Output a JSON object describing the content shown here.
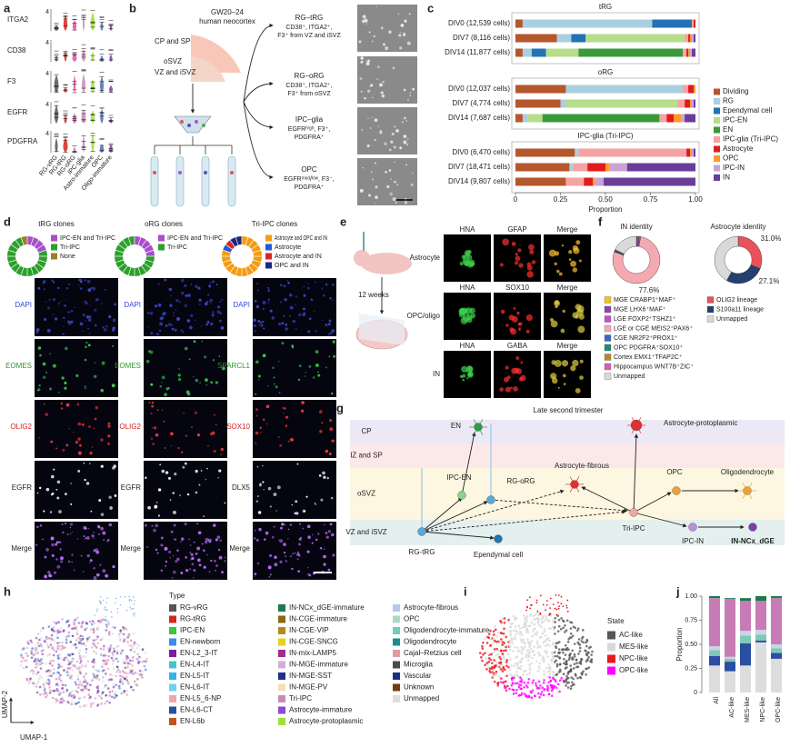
{
  "panel_a": {
    "label": "a",
    "genes": [
      "ITGA2",
      "CD38",
      "F3",
      "EGFR",
      "PDGFRA"
    ],
    "axis_max": 4,
    "categories": [
      "RG-vRG",
      "RG-tRG",
      "RG-oRG",
      "IPC-glia",
      "Astro-immature",
      "OPC",
      "Oligo-immature"
    ],
    "colors": [
      "#555555",
      "#d7261e",
      "#e84aa0",
      "#c68ab7",
      "#9ee03a",
      "#4c6fb0",
      "#7a3fb0"
    ]
  },
  "panel_b": {
    "label": "b",
    "source": [
      "GW20–24",
      "human neocortex"
    ],
    "regions": [
      "CP and SP",
      "oSVZ",
      "VZ and iSVZ"
    ],
    "branches": [
      {
        "title": "RG–tRG",
        "lines": [
          "CD38⁺, ITGA2⁺,",
          "F3⁺ from VZ and iSVZ"
        ]
      },
      {
        "title": "RG–oRG",
        "lines": [
          "CD38⁺, ITGA2⁺,",
          "F3⁺ from oSVZ"
        ]
      },
      {
        "title": "IPC–glia",
        "lines": [
          "EGFRʰⁱᵍʰ, F3⁺,",
          "PDGFRA⁺"
        ]
      },
      {
        "title": "OPC",
        "lines": [
          "EGFRᵐᵉᵈ/ˡᵒʷ, F3⁻,",
          "PDGFRA⁺"
        ]
      }
    ]
  },
  "panel_c": {
    "label": "c",
    "type": "stacked_barh",
    "groups": [
      {
        "title": "tRG",
        "rows": [
          "DIV0 (12,539 cells)",
          "DIV7 (8,116 cells)",
          "DIV14 (11,877 cells)"
        ]
      },
      {
        "title": "oRG",
        "rows": [
          "DIV0 (12,037 cells)",
          "DIV7 (4,774 cells)",
          "DIV14 (7,687 cells)"
        ]
      },
      {
        "title": "IPC-glia (Tri-IPC)",
        "rows": [
          "DIV0 (6,470 cells)",
          "DIV7 (18,471 cells)",
          "DIV14 (9,807 cells)"
        ]
      }
    ],
    "series": [
      {
        "name": "Dividing",
        "color": "#b5562b",
        "values": [
          0.04,
          0.23,
          0.04,
          0.28,
          0.25,
          0.04,
          0.33,
          0.3,
          0.28
        ]
      },
      {
        "name": "RG",
        "color": "#a9cfe0",
        "values": [
          0.72,
          0.08,
          0.05,
          0.65,
          0.03,
          0.03,
          0.02,
          0.02,
          0
        ]
      },
      {
        "name": "Ependymal cell",
        "color": "#2272b4",
        "values": [
          0.22,
          0.08,
          0.08,
          0,
          0,
          0,
          0,
          0,
          0
        ]
      },
      {
        "name": "IPC-EN",
        "color": "#b5dd8a",
        "values": [
          0,
          0.55,
          0.18,
          0,
          0.62,
          0.08,
          0,
          0,
          0
        ]
      },
      {
        "name": "EN",
        "color": "#3a9a3a",
        "values": [
          0,
          0,
          0.58,
          0,
          0,
          0.65,
          0,
          0,
          0
        ]
      },
      {
        "name": "IPC-glia (Tri-IPC)",
        "color": "#f4a3a3",
        "values": [
          0.01,
          0.02,
          0.02,
          0.03,
          0.04,
          0.04,
          0.6,
          0.08,
          0.1
        ]
      },
      {
        "name": "Astrocyte",
        "color": "#e31a1c",
        "values": [
          0.01,
          0.01,
          0.01,
          0.03,
          0.03,
          0.04,
          0.02,
          0.1,
          0.05
        ]
      },
      {
        "name": "OPC",
        "color": "#fb9a29",
        "values": [
          0,
          0.01,
          0.01,
          0.01,
          0.01,
          0.04,
          0.01,
          0.02,
          0.01
        ]
      },
      {
        "name": "IPC-IN",
        "color": "#c9a3d6",
        "values": [
          0,
          0.01,
          0.01,
          0,
          0.01,
          0.02,
          0.01,
          0.1,
          0.05
        ]
      },
      {
        "name": "IN",
        "color": "#6a3d9a",
        "values": [
          0,
          0.01,
          0.02,
          0,
          0.01,
          0.06,
          0.01,
          0.38,
          0.51
        ]
      }
    ],
    "xlim": [
      0,
      1
    ],
    "xticks": [
      0,
      0.25,
      {
        "value": 0.5,
        "label": "0.50"
      },
      0.75,
      {
        "value": 1,
        "label": "1.00"
      }
    ],
    "x_label": "Proportion"
  },
  "panel_d": {
    "label": "d",
    "donuts": [
      {
        "title": "tRG clones",
        "segments": [
          {
            "name": "IPC-EN and Tri-IPC",
            "color": "#a64fc9",
            "value": 4
          },
          {
            "name": "Tri-IPC",
            "color": "#2ca02c",
            "value": 15
          },
          {
            "name": "None",
            "color": "#a07a2c",
            "value": 1
          }
        ]
      },
      {
        "title": "oRG clones",
        "segments": [
          {
            "name": "IPC-EN and Tri-IPC",
            "color": "#a64fc9",
            "value": 5
          },
          {
            "name": "Tri-IPC",
            "color": "#2ca02c",
            "value": 15
          }
        ]
      },
      {
        "title": "Tri-IPC clones",
        "segments": [
          {
            "name": "Astrocyte and OPC and IN",
            "color": "#f39c12",
            "value": 16
          },
          {
            "name": "Astrocyte",
            "color": "#2458d6",
            "value": 1
          },
          {
            "name": "Astrocyte and IN",
            "color": "#d62728",
            "value": 1
          },
          {
            "name": "OPC and IN",
            "color": "#1a2a80",
            "value": 2
          }
        ]
      }
    ],
    "stains": [
      [
        "DAPI",
        "EOMES",
        "OLIG2",
        "EGFR",
        "Merge"
      ],
      [
        "DAPI",
        "EOMES",
        "OLIG2",
        "EGFR",
        "Merge"
      ],
      [
        "DAPI",
        "SPARCL1",
        "SOX10",
        "DLX5",
        "Merge"
      ]
    ]
  },
  "panel_e": {
    "label": "e",
    "duration": "12 weeks",
    "rows": [
      {
        "name": "Astrocyte",
        "stains": [
          "HNA",
          "GFAP",
          "Merge"
        ]
      },
      {
        "name": "OPC/oligo",
        "stains": [
          "HNA",
          "SOX10",
          "Merge"
        ]
      },
      {
        "name": "IN",
        "stains": [
          "HNA",
          "GABA",
          "Merge"
        ]
      }
    ]
  },
  "panel_f": {
    "label": "f",
    "type": "donut",
    "in_identity": {
      "title": "IN identity",
      "segments": [
        {
          "name": "MGE CRABP1⁺MAF⁺",
          "color": "#f0c419",
          "value": 0.5
        },
        {
          "name": "MGE LHX6⁺MAF⁺",
          "color": "#8e44ad",
          "value": 1.5
        },
        {
          "name": "LGE FOXP2⁺TSHZ1⁺",
          "color": "#c052c8",
          "value": 1
        },
        {
          "name": "LGE or CGE MEIS2⁺PAX6⁺",
          "color": "#f4a9b1",
          "value": 77.6,
          "value_label": "77.6%"
        },
        {
          "name": "CGE NR2F2⁺PROX1⁺",
          "color": "#3b68c2",
          "value": 0.5
        },
        {
          "name": "OPC PDGFRA⁺SOX10⁺",
          "color": "#1f8a70",
          "value": 0.5
        },
        {
          "name": "Cortex EMX1⁺TFAP2C⁺",
          "color": "#b58a2c",
          "value": 0.3
        },
        {
          "name": "Hippocampus WNT7B⁺ZIC⁺",
          "color": "#d35fb7",
          "value": 0.3
        },
        {
          "name": "Unmapped",
          "color": "#d9d9d9",
          "value": 17.8
        }
      ]
    },
    "astro_identity": {
      "title": "Astrocyte identity",
      "segments": [
        {
          "name": "OLIG2 lineage",
          "color": "#e8525a",
          "value": 31.0,
          "value_label": "31.0%"
        },
        {
          "name": "S100a11 lineage",
          "color": "#24406e",
          "value": 27.1,
          "value_label": "27.1%"
        },
        {
          "name": "Unmapped",
          "color": "#d9d9d9",
          "value": 41.9
        }
      ]
    }
  },
  "panel_g": {
    "label": "g",
    "title": "Late second trimester",
    "layers": [
      "CP",
      "IZ and SP",
      "oSVZ",
      "VZ and iSVZ"
    ],
    "cells": [
      "EN",
      "Astrocyte-protoplasmic",
      "Astrocyte-fibrous",
      "OPC",
      "Oligodendrocyte",
      "IPC-EN",
      "RG-oRG",
      "Tri-IPC",
      "IPC-IN",
      "IN-NCx_dGE",
      "RG-tRG",
      "Ependymal cell"
    ]
  },
  "panel_h": {
    "label": "h",
    "legend_title": "Type",
    "x_label": "UMAP-1",
    "y_label": "UMAP-2",
    "types": [
      {
        "name": "RG-vRG",
        "color": "#555555"
      },
      {
        "name": "RG-tRG",
        "color": "#d7261e"
      },
      {
        "name": "IPC-EN",
        "color": "#3ec43e"
      },
      {
        "name": "EN-newborn",
        "color": "#3a8ee6"
      },
      {
        "name": "EN-L2_3-IT",
        "color": "#7b1fa2"
      },
      {
        "name": "EN-L4-IT",
        "color": "#45c4c6"
      },
      {
        "name": "EN-L5-IT",
        "color": "#2fb6e8"
      },
      {
        "name": "EN-L6-IT",
        "color": "#6fd0f0"
      },
      {
        "name": "EN-L5_6-NP",
        "color": "#f4a3a8"
      },
      {
        "name": "EN-L6-CT",
        "color": "#2b4ea2"
      },
      {
        "name": "EN-L6b",
        "color": "#c8501e"
      },
      {
        "name": "IN-NCx_dGE-immature",
        "color": "#1d7a4d"
      },
      {
        "name": "IN-CGE-immature",
        "color": "#8b6914"
      },
      {
        "name": "IN-CGE-VIP",
        "color": "#b08a1e"
      },
      {
        "name": "IN-CGE-SNCG",
        "color": "#e3d21e"
      },
      {
        "name": "IN-mix-LAMP5",
        "color": "#a52a88"
      },
      {
        "name": "IN-MGE-immature",
        "color": "#d5aadc"
      },
      {
        "name": "IN-MGE-SST",
        "color": "#1f2f8a"
      },
      {
        "name": "IN-MGE-PV",
        "color": "#f5deb3"
      },
      {
        "name": "Tri-IPC",
        "color": "#c68ab7"
      },
      {
        "name": "Astrocyte-immature",
        "color": "#8a4fc9"
      },
      {
        "name": "Astrocyte-protoplasmic",
        "color": "#9ee03a"
      },
      {
        "name": "Astrocyte-fibrous",
        "color": "#b7c7ec"
      },
      {
        "name": "OPC",
        "color": "#a8dcc8"
      },
      {
        "name": "Oligodendrocyte-immature",
        "color": "#76c8c0"
      },
      {
        "name": "Oligodendrocyte",
        "color": "#1e8c8c"
      },
      {
        "name": "Cajal–Retzius cell",
        "color": "#e09aa0"
      },
      {
        "name": "Microglia",
        "color": "#4a4a4a"
      },
      {
        "name": "Vascular",
        "color": "#1f2f80"
      },
      {
        "name": "Unknown",
        "color": "#7a3a10"
      },
      {
        "name": "Unmapped",
        "color": "#dddddd"
      }
    ]
  },
  "panel_i": {
    "label": "i",
    "legend_title": "State",
    "states": [
      {
        "name": "AC-like",
        "color": "#555555"
      },
      {
        "name": "MES-like",
        "color": "#d9d9d9"
      },
      {
        "name": "NPC-like",
        "color": "#e8181c"
      },
      {
        "name": "OPC-like",
        "color": "#ff00ff"
      }
    ]
  },
  "panel_j": {
    "label": "j",
    "type": "stacked_bar",
    "categories": [
      "All",
      "AC-like",
      "MES-like",
      "NPC-like",
      "OPC-like"
    ],
    "series": [
      {
        "name": "Unmapped",
        "color": "#dddddd",
        "values": [
          0.28,
          0.22,
          0.28,
          0.52,
          0.35
        ]
      },
      {
        "name": "EN-L6-CT",
        "color": "#2b4ea2",
        "values": [
          0.1,
          0.1,
          0.23,
          0.02,
          0.06
        ]
      },
      {
        "name": "OPC",
        "color": "#7fc9b6",
        "values": [
          0.06,
          0.03,
          0.08,
          0.06,
          0.05
        ]
      },
      {
        "name": "Astrocyte-fibrous",
        "color": "#c9d3ea",
        "values": [
          0.04,
          0.02,
          0.05,
          0.05,
          0.04
        ]
      },
      {
        "name": "Tri-IPC",
        "color": "#c77cb5",
        "values": [
          0.5,
          0.6,
          0.31,
          0.3,
          0.48
        ]
      },
      {
        "name": "IN-NCx_dGE-immature",
        "color": "#1d7a4d",
        "values": [
          0.02,
          0.01,
          0.03,
          0.05,
          0.02
        ]
      }
    ],
    "ylim": [
      0,
      1
    ],
    "yticks": [
      0,
      0.25,
      {
        "value": 0.5,
        "label": "0.50"
      },
      0.75,
      {
        "value": 1,
        "label": "1.00"
      }
    ],
    "y_label": "Proportion"
  }
}
